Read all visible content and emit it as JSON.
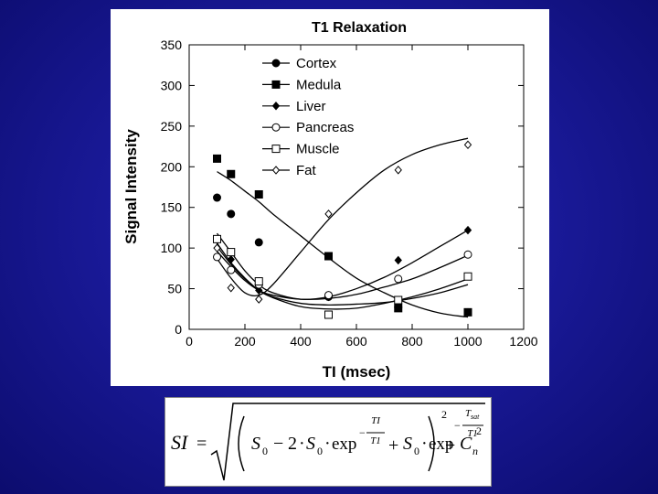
{
  "chart_data": {
    "type": "scatter",
    "title": "T1 Relaxation",
    "xlabel": "TI (msec)",
    "ylabel": "Signal Intensity",
    "xlim": [
      0,
      1200
    ],
    "ylim": [
      0,
      350
    ],
    "xticks": [
      0,
      200,
      400,
      600,
      800,
      1000,
      1200
    ],
    "yticks": [
      0,
      50,
      100,
      150,
      200,
      250,
      300,
      350
    ],
    "legend_position": "top-left",
    "x": [
      100,
      150,
      250,
      500,
      750,
      1000
    ],
    "series": [
      {
        "name": "Cortex",
        "marker": "filled-circle",
        "values": [
          162,
          142,
          107,
          40,
          27,
          21
        ]
      },
      {
        "name": "Medula",
        "marker": "filled-square",
        "values": [
          210,
          191,
          166,
          90,
          26,
          21
        ]
      },
      {
        "name": "Liver",
        "marker": "filled-diamond",
        "values": [
          110,
          86,
          48,
          40,
          85,
          122
        ]
      },
      {
        "name": "Pancreas",
        "marker": "open-circle",
        "values": [
          89,
          73,
          55,
          42,
          62,
          92
        ]
      },
      {
        "name": "Muscle",
        "marker": "open-square",
        "values": [
          111,
          95,
          59,
          18,
          36,
          65
        ]
      },
      {
        "name": "Fat",
        "marker": "open-diamond",
        "values": [
          100,
          51,
          37,
          142,
          196,
          227
        ]
      }
    ],
    "fit_curves": [
      {
        "series": "Medula",
        "x": [
          100,
          150,
          200,
          250,
          300,
          400,
          500,
          600,
          700,
          800,
          900,
          1000
        ],
        "values": [
          194,
          183,
          170,
          157,
          142,
          115,
          88,
          63,
          45,
          30,
          20,
          15
        ]
      },
      {
        "series": "Fat",
        "x": [
          100,
          150,
          200,
          250,
          300,
          400,
          500,
          600,
          700,
          800,
          900,
          1000
        ],
        "values": [
          87,
          63,
          45,
          42,
          55,
          95,
          135,
          168,
          196,
          215,
          227,
          235
        ]
      },
      {
        "series": "Liver",
        "x": [
          100,
          150,
          200,
          250,
          300,
          400,
          500,
          600,
          700,
          800,
          900,
          1000
        ],
        "values": [
          118,
          95,
          72,
          55,
          45,
          37,
          40,
          50,
          64,
          82,
          102,
          122
        ]
      },
      {
        "series": "Pancreas",
        "x": [
          100,
          150,
          200,
          250,
          300,
          400,
          500,
          600,
          700,
          800,
          900,
          1000
        ],
        "values": [
          96,
          77,
          60,
          48,
          42,
          37,
          38,
          43,
          52,
          62,
          76,
          91
        ]
      },
      {
        "series": "Muscle",
        "x": [
          100,
          150,
          200,
          250,
          300,
          400,
          500,
          600,
          700,
          800,
          900,
          1000
        ],
        "values": [
          106,
          82,
          63,
          48,
          39,
          28,
          25,
          26,
          32,
          40,
          50,
          62
        ]
      },
      {
        "series": "Cortex",
        "x": [
          100,
          150,
          200,
          250,
          300,
          400,
          500,
          600,
          700,
          800,
          900,
          1000
        ],
        "values": [
          102,
          80,
          62,
          48,
          40,
          32,
          30,
          31,
          33,
          38,
          45,
          55
        ]
      }
    ]
  },
  "formula": {
    "lhs": "SI",
    "S0": "S",
    "sub0": "0",
    "minus": "−",
    "two": "2",
    "dot": "·",
    "exp": "exp",
    "exp1_num": "TI",
    "exp1_den": "T1",
    "plus": "+",
    "exp2_num": "T",
    "exp2_num_sub": "sat",
    "exp2_den": "T1",
    "sq": "2",
    "C": "C",
    "sub_n": "n",
    "eq": "="
  }
}
